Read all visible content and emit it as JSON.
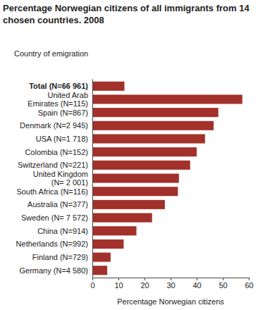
{
  "chart_data": {
    "type": "bar",
    "orientation": "horizontal",
    "title": "Percentage Norwegian citizens of all immigrants from 14 chosen countries. 2008",
    "y_label": "Country of emigration",
    "x_label": "Percentage Norwegian citizens",
    "categories": [
      "Total (N=66 961)",
      "United Arab\nEmirates (N=115)",
      "Spain (N=867)",
      "Denmark (N=2 945)",
      "USA (N=1 718)",
      "Colombia (N=152)",
      "Switzerland (N=221)",
      "United Kingdom\n(N= 2 001)",
      "South Africa (N=116)",
      "Australia (N=377)",
      "Sweden (N= 7 572)",
      "China (N=914)",
      "Netherlands (N=992)",
      "Finland (N=729)",
      "Germany (N=4 580)"
    ],
    "values": [
      12.3,
      57.5,
      48.3,
      46.5,
      43.2,
      40.0,
      37.5,
      33.2,
      32.8,
      27.8,
      22.9,
      16.9,
      12.0,
      7.0,
      5.7
    ],
    "color": "#a3312b",
    "xlim": [
      0,
      60
    ],
    "xticks": [
      0,
      10,
      20,
      30,
      40,
      50,
      60
    ],
    "grid": false
  }
}
